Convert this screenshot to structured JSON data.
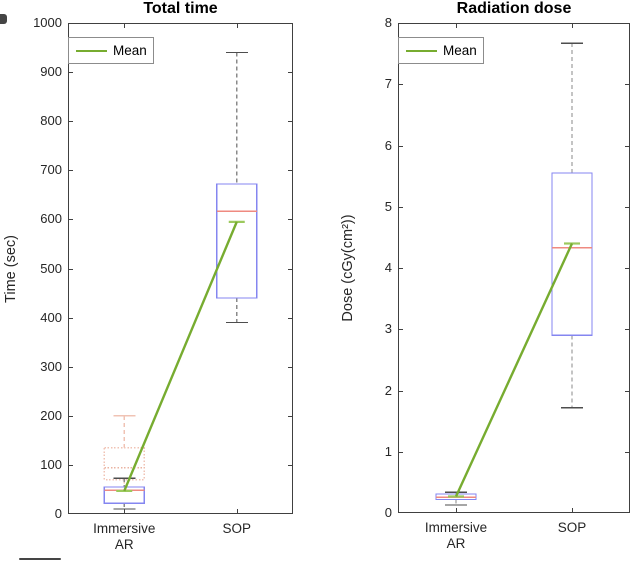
{
  "figure": {
    "background": "#ffffff"
  },
  "colors": {
    "box_stroke": "#8486f0",
    "median": "#ef8a80",
    "mean_line": "#77ac30",
    "mean_cap": "#9cc95d",
    "whisker": "#8a8a8a",
    "whisker_cap": "#4d4d4d",
    "pink_box": "#f0c3b4",
    "pink_median": "#eab3a2",
    "axis": "#404040",
    "text": "#262626"
  },
  "chart_data": [
    {
      "type": "boxplot",
      "title": "Total time",
      "ylabel": "Time (sec)",
      "ylim": [
        0,
        1000
      ],
      "yticks": [
        0,
        100,
        200,
        300,
        400,
        500,
        600,
        700,
        800,
        900,
        1000
      ],
      "categories": [
        "Immersive\nAR",
        "SOP"
      ],
      "legend": {
        "label": "Mean",
        "position": "top-left"
      },
      "grid": false,
      "boxes": [
        {
          "category": 0,
          "style": "pink",
          "q1": 70,
          "median": 94,
          "q3": 135,
          "whisker_low": 48,
          "whisker_high": 200
        },
        {
          "category": 0,
          "style": "blue",
          "q1": 22,
          "median": 48,
          "q3": 55,
          "whisker_low": 10,
          "whisker_high": 73
        },
        {
          "category": 1,
          "style": "blue",
          "q1": 440,
          "median": 617,
          "q3": 672,
          "whisker_low": 390,
          "whisker_high": 940
        }
      ],
      "mean_series": {
        "name": "Mean",
        "values": [
          47,
          595
        ]
      }
    },
    {
      "type": "boxplot",
      "title": "Radiation dose",
      "ylabel": "Dose (cGy(cm²))",
      "ylim": [
        0,
        8
      ],
      "yticks": [
        0,
        1,
        2,
        3,
        4,
        5,
        6,
        7,
        8
      ],
      "categories": [
        "Immersive\nAR",
        "SOP"
      ],
      "legend": {
        "label": "Mean",
        "position": "top-left"
      },
      "grid": false,
      "boxes": [
        {
          "category": 0,
          "style": "blue",
          "q1": 0.22,
          "median": 0.26,
          "q3": 0.31,
          "whisker_low": 0.13,
          "whisker_high": 0.34
        },
        {
          "category": 1,
          "style": "blue",
          "q1": 2.9,
          "median": 4.33,
          "q3": 5.55,
          "whisker_low": 1.72,
          "whisker_high": 7.67
        }
      ],
      "mean_series": {
        "name": "Mean",
        "values": [
          0.27,
          4.4
        ]
      }
    }
  ]
}
